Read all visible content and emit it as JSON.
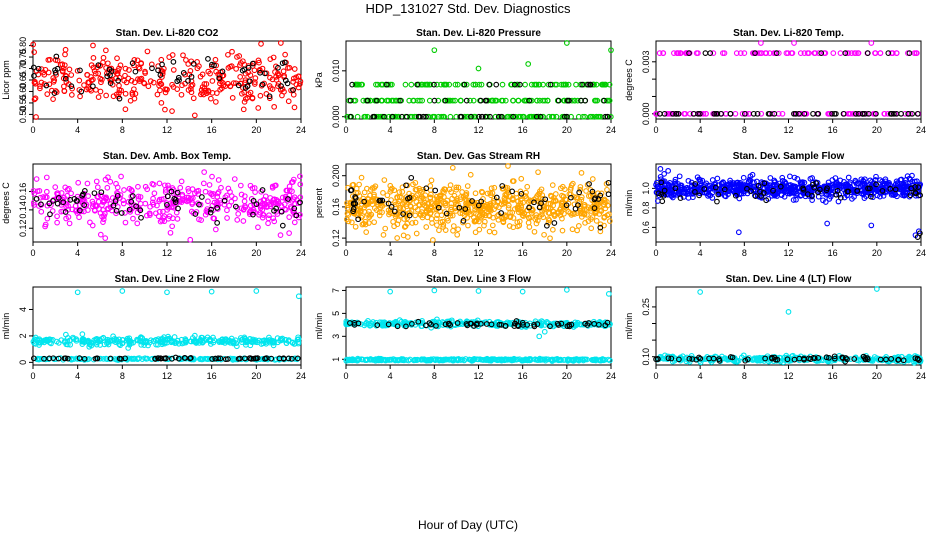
{
  "page": {
    "title": "HDP_131027  Std. Dev. Diagnostics",
    "xlabel": "Hour of Day (UTC)"
  },
  "colors": {
    "overlay": "#000000",
    "red": "#ff0000",
    "green": "#00cc00",
    "magenta": "#ff00ff",
    "orange": "#ffa500",
    "blue": "#0000ff",
    "cyan": "#00e5ee"
  },
  "chart_data": [
    {
      "type": "scatter",
      "title": "Stan. Dev. Li-820 CO2",
      "ylabel": "Licor ppm",
      "xlim": [
        0,
        24
      ],
      "ylim": [
        0.48,
        0.82
      ],
      "xticks": [
        0,
        4,
        8,
        12,
        16,
        20,
        24
      ],
      "yticks": [
        0.5,
        0.55,
        0.6,
        0.65,
        0.7,
        0.75,
        0.8
      ],
      "yticklabels": [
        "0.50",
        "0.55",
        "0.60",
        "0.65",
        "0.70",
        "0.75",
        "0.80"
      ],
      "color": "#ff0000",
      "series": [
        {
          "name": "main",
          "distribution": "normal",
          "n": 340,
          "mean": 0.655,
          "sd": 0.055
        },
        {
          "name": "overlay",
          "distribution": "normal",
          "n": 60,
          "mean": 0.665,
          "sd": 0.04
        }
      ]
    },
    {
      "type": "scatter",
      "title": "Stan. Dev. Li-820 Pressure",
      "ylabel": "kPa",
      "xlim": [
        0,
        24
      ],
      "ylim": [
        -0.0005,
        0.0165
      ],
      "xticks": [
        0,
        4,
        8,
        12,
        16,
        20,
        24
      ],
      "yticks": [
        0.0,
        0.01
      ],
      "yticklabels": [
        "0.000",
        "0.010"
      ],
      "color": "#00cc00",
      "series": [
        {
          "name": "main",
          "distribution": "levels",
          "n": 300,
          "levels": [
            0.0,
            0.0035,
            0.007
          ],
          "weights": [
            0.35,
            0.35,
            0.3
          ],
          "outliers": [
            [
              8,
              0.0145
            ],
            [
              20,
              0.0165
            ],
            [
              24,
              0.0145
            ],
            [
              12,
              0.0105
            ],
            [
              16.5,
              0.0115
            ]
          ]
        },
        {
          "name": "overlay",
          "distribution": "levels",
          "n": 60,
          "levels": [
            0.0,
            0.0035,
            0.007
          ],
          "weights": [
            0.5,
            0.3,
            0.2
          ]
        }
      ]
    },
    {
      "type": "scatter",
      "title": "Stan. Dev. Li-820 Temp.",
      "ylabel": "degrees C",
      "xlim": [
        0,
        24
      ],
      "ylim": [
        -0.0003,
        0.0042
      ],
      "xticks": [
        0,
        4,
        8,
        12,
        16,
        20,
        24
      ],
      "yticks": [
        0.0,
        0.001,
        0.002,
        0.003
      ],
      "yticklabels": [
        "0.000",
        "",
        "",
        "0.003"
      ],
      "color": "#ff00ff",
      "series": [
        {
          "name": "main",
          "distribution": "levels",
          "n": 140,
          "levels": [
            0.0,
            0.0035
          ],
          "weights": [
            0.6,
            0.4
          ],
          "outliers": [
            [
              9.5,
              0.0045
            ],
            [
              12.5,
              0.0045
            ],
            [
              19.5,
              0.0045
            ]
          ]
        },
        {
          "name": "overlay",
          "distribution": "levels",
          "n": 60,
          "levels": [
            0.0,
            0.0035
          ],
          "weights": [
            0.8,
            0.2
          ]
        }
      ]
    },
    {
      "type": "scatter",
      "title": "Stan. Dev. Amb. Box Temp.",
      "ylabel": "degrees C",
      "xlim": [
        0,
        24
      ],
      "ylim": [
        0.105,
        0.19
      ],
      "xticks": [
        0,
        4,
        8,
        12,
        16,
        20,
        24
      ],
      "yticks": [
        0.12,
        0.14,
        0.16
      ],
      "yticklabels": [
        "0.12",
        "0.14",
        "0.16"
      ],
      "color": "#ff00ff",
      "series": [
        {
          "name": "main",
          "distribution": "normal",
          "n": 420,
          "mean": 0.148,
          "sd": 0.012
        },
        {
          "name": "overlay",
          "distribution": "normal",
          "n": 60,
          "mean": 0.148,
          "sd": 0.01
        }
      ]
    },
    {
      "type": "scatter",
      "title": "Stan. Dev. Gas Stream RH",
      "ylabel": "percent",
      "xlim": [
        0,
        24
      ],
      "ylim": [
        0.115,
        0.215
      ],
      "xticks": [
        0,
        4,
        8,
        12,
        16,
        20,
        24
      ],
      "yticks": [
        0.12,
        0.16,
        0.2
      ],
      "yticklabels": [
        "0.12",
        "0.16",
        "0.200"
      ],
      "color": "#ffa500",
      "series": [
        {
          "name": "main",
          "distribution": "normal",
          "n": 700,
          "mean": 0.16,
          "sd": 0.015
        },
        {
          "name": "overlay",
          "distribution": "normal",
          "n": 60,
          "mean": 0.162,
          "sd": 0.013
        }
      ]
    },
    {
      "type": "scatter",
      "title": "Stan. Dev. Sample Flow",
      "ylabel": "ml/min",
      "xlim": [
        0,
        24
      ],
      "ylim": [
        0.45,
        1.25
      ],
      "xticks": [
        0,
        4,
        8,
        12,
        16,
        20,
        24
      ],
      "yticks": [
        0.6,
        0.8,
        1.0
      ],
      "yticklabels": [
        "0.6",
        "0.8",
        "1.0"
      ],
      "color": "#0000ff",
      "series": [
        {
          "name": "main",
          "distribution": "normal",
          "n": 700,
          "mean": 1.0,
          "sd": 0.05,
          "outliers": [
            [
              7.5,
              0.55
            ],
            [
              15.5,
              0.64
            ],
            [
              19.5,
              0.62
            ],
            [
              23.5,
              0.52
            ],
            [
              23.8,
              0.56
            ],
            [
              0.4,
              1.2
            ],
            [
              1.1,
              1.18
            ]
          ]
        },
        {
          "name": "overlay",
          "distribution": "normal",
          "n": 60,
          "mean": 0.96,
          "sd": 0.05,
          "outliers": [
            [
              23.7,
              0.5
            ],
            [
              23.9,
              0.54
            ]
          ]
        }
      ]
    },
    {
      "type": "scatter",
      "title": "Stan. Dev. Line 2 Flow",
      "ylabel": "ml/min",
      "xlim": [
        0,
        24
      ],
      "ylim": [
        -0.2,
        5.7
      ],
      "xticks": [
        0,
        4,
        8,
        12,
        16,
        20,
        24
      ],
      "yticks": [
        0,
        2,
        4
      ],
      "yticklabels": [
        "0",
        "2",
        "4"
      ],
      "color": "#00e5ee",
      "series": [
        {
          "name": "main",
          "distribution": "normal",
          "n": 300,
          "mean": 1.6,
          "sd": 0.15,
          "outliers": [
            [
              4,
              5.3
            ],
            [
              8,
              5.4
            ],
            [
              12,
              5.3
            ],
            [
              16,
              5.35
            ],
            [
              20,
              5.4
            ],
            [
              23.8,
              5.0
            ]
          ]
        },
        {
          "name": "baseline",
          "distribution": "normal",
          "n": 150,
          "mean": 0.25,
          "sd": 0.03
        },
        {
          "name": "overlay",
          "distribution": "normal",
          "n": 60,
          "mean": 0.3,
          "sd": 0.03
        }
      ]
    },
    {
      "type": "scatter",
      "title": "Stan. Dev. Line 3 Flow",
      "ylabel": "ml/min",
      "xlim": [
        0,
        24
      ],
      "ylim": [
        0.5,
        7.3
      ],
      "xticks": [
        0,
        4,
        8,
        12,
        16,
        20,
        24
      ],
      "yticks": [
        1,
        3,
        5,
        7
      ],
      "yticklabels": [
        "1",
        "3",
        "5",
        "7"
      ],
      "color": "#00e5ee",
      "series": [
        {
          "name": "main",
          "distribution": "normal",
          "n": 300,
          "mean": 4.1,
          "sd": 0.12,
          "outliers": [
            [
              4,
              6.9
            ],
            [
              8,
              7.0
            ],
            [
              12,
              6.95
            ],
            [
              16,
              6.9
            ],
            [
              20,
              7.05
            ],
            [
              23.8,
              6.7
            ],
            [
              17.5,
              3.0
            ],
            [
              18,
              3.4
            ]
          ]
        },
        {
          "name": "baseline",
          "distribution": "normal",
          "n": 300,
          "mean": 0.95,
          "sd": 0.04
        },
        {
          "name": "overlay",
          "distribution": "normal",
          "n": 60,
          "mean": 4.05,
          "sd": 0.1
        }
      ]
    },
    {
      "type": "scatter",
      "title": "Stan. Dev. Line 4 (LT) Flow",
      "ylabel": "ml/min",
      "xlim": [
        0,
        24
      ],
      "ylim": [
        0.075,
        0.31
      ],
      "xticks": [
        0,
        4,
        8,
        12,
        16,
        20,
        24
      ],
      "yticks": [
        0.1,
        0.15,
        0.2,
        0.25
      ],
      "yticklabels": [
        "0.10",
        "",
        "",
        "0.25"
      ],
      "color": "#00e5ee",
      "series": [
        {
          "name": "main",
          "distribution": "normal",
          "n": 300,
          "mean": 0.093,
          "sd": 0.004,
          "outliers": [
            [
              4,
              0.295
            ],
            [
              12,
              0.235
            ],
            [
              20,
              0.305
            ]
          ]
        },
        {
          "name": "overlay",
          "distribution": "normal",
          "n": 60,
          "mean": 0.094,
          "sd": 0.003
        }
      ]
    }
  ]
}
